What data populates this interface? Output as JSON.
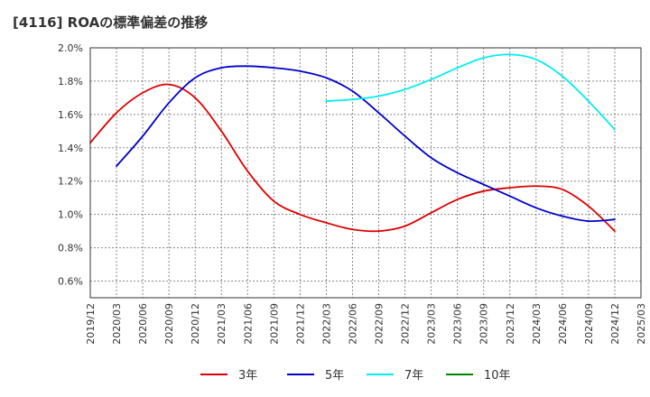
{
  "title": "[4116]  ROAの標準偏差の推移",
  "chart_data": {
    "type": "line",
    "title": "[4116]  ROAの標準偏差の推移",
    "xlabel": "",
    "ylabel": "",
    "x_ticks": [
      "2019/12",
      "2020/03",
      "2020/06",
      "2020/09",
      "2020/12",
      "2021/03",
      "2021/06",
      "2021/09",
      "2021/12",
      "2022/03",
      "2022/06",
      "2022/09",
      "2022/12",
      "2023/03",
      "2023/06",
      "2023/09",
      "2023/12",
      "2024/03",
      "2024/06",
      "2024/09",
      "2024/12",
      "2025/03"
    ],
    "y_ticks": [
      "0.6%",
      "0.8%",
      "1.0%",
      "1.2%",
      "1.4%",
      "1.6%",
      "1.8%",
      "2.0%"
    ],
    "ylim": [
      0.5,
      2.0
    ],
    "y_unit": "%",
    "grid": true,
    "legend_position": "bottom",
    "series": [
      {
        "name": "3年",
        "color": "#dd0000",
        "x": [
          "2019/12",
          "2020/03",
          "2020/06",
          "2020/09",
          "2020/12",
          "2021/03",
          "2021/06",
          "2021/09",
          "2021/12",
          "2022/03",
          "2022/06",
          "2022/09",
          "2022/12",
          "2023/03",
          "2023/06",
          "2023/09",
          "2023/12",
          "2024/03",
          "2024/06",
          "2024/09",
          "2024/12"
        ],
        "values": [
          1.43,
          1.61,
          1.73,
          1.78,
          1.7,
          1.5,
          1.26,
          1.08,
          1.0,
          0.95,
          0.91,
          0.9,
          0.93,
          1.01,
          1.09,
          1.14,
          1.16,
          1.17,
          1.15,
          1.05,
          0.9
        ]
      },
      {
        "name": "5年",
        "color": "#0000cc",
        "x": [
          "2020/03",
          "2020/06",
          "2020/09",
          "2020/12",
          "2021/03",
          "2021/06",
          "2021/09",
          "2021/12",
          "2022/03",
          "2022/06",
          "2022/09",
          "2022/12",
          "2023/03",
          "2023/06",
          "2023/09",
          "2023/12",
          "2024/03",
          "2024/06",
          "2024/09",
          "2024/12"
        ],
        "values": [
          1.29,
          1.47,
          1.67,
          1.82,
          1.88,
          1.89,
          1.88,
          1.86,
          1.82,
          1.74,
          1.61,
          1.47,
          1.34,
          1.25,
          1.18,
          1.11,
          1.04,
          0.99,
          0.96,
          0.97
        ]
      },
      {
        "name": "7年",
        "color": "#00eeee",
        "x": [
          "2022/03",
          "2022/06",
          "2022/09",
          "2022/12",
          "2023/03",
          "2023/06",
          "2023/09",
          "2023/12",
          "2024/03",
          "2024/06",
          "2024/09",
          "2024/12"
        ],
        "values": [
          1.68,
          1.69,
          1.71,
          1.75,
          1.81,
          1.88,
          1.94,
          1.96,
          1.93,
          1.83,
          1.68,
          1.51
        ]
      },
      {
        "name": "10年",
        "color": "#008800",
        "x": [],
        "values": []
      }
    ]
  }
}
